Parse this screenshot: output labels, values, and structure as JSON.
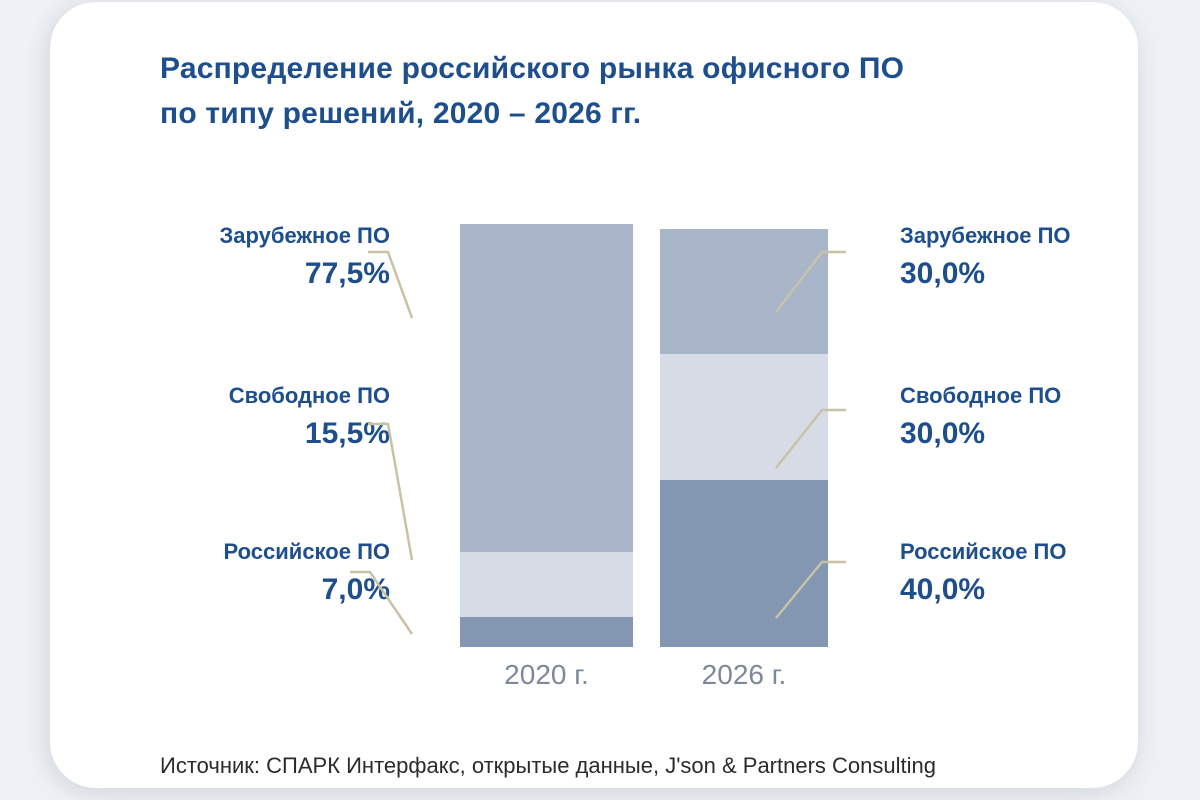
{
  "title": {
    "line1": "Распределение российского рынка офисного ПО",
    "line2": "по типу решений, 2020 – 2026 гг."
  },
  "callouts": {
    "left": [
      {
        "name": "Зарубежное ПО",
        "value": "77,5%"
      },
      {
        "name": "Свободное ПО",
        "value": "15,5%"
      },
      {
        "name": "Российское ПО",
        "value": "7,0%"
      }
    ],
    "right": [
      {
        "name": "Зарубежное ПО",
        "value": "30,0%"
      },
      {
        "name": "Свободное ПО",
        "value": "30,0%"
      },
      {
        "name": "Российское ПО",
        "value": "40,0%"
      }
    ]
  },
  "source": {
    "text": "Источник: СПАРК Интерфакс, открытые данные, J'son & Partners Consulting"
  },
  "colors": {
    "page_bg": "#eef1f5",
    "card_bg": "#ffffff",
    "title_blue": "#1f4e8c",
    "axis_gray": "#7d889b",
    "source_text": "#2b2b2b",
    "leader_line": "#c8c2a6",
    "seg_foreign": "#a9b5c8",
    "seg_free": "#d6dbe5",
    "seg_russian": "#8396b2"
  },
  "chart_data": {
    "type": "bar",
    "stacked": true,
    "title": "Распределение российского рынка офисного ПО по типу решений, 2020 – 2026 гг.",
    "categories": [
      "2020 г.",
      "2026 г."
    ],
    "series": [
      {
        "name": "Зарубежное ПО",
        "values": [
          77.5,
          30.0
        ],
        "color": "#a9b5c8"
      },
      {
        "name": "Свободное ПО",
        "values": [
          15.5,
          30.0
        ],
        "color": "#d6dbe5"
      },
      {
        "name": "Российское ПО",
        "values": [
          7.0,
          40.0
        ],
        "color": "#8396b2"
      }
    ],
    "unit": "%",
    "ylim": [
      0,
      100
    ],
    "grid": false,
    "legend": "callouts"
  }
}
